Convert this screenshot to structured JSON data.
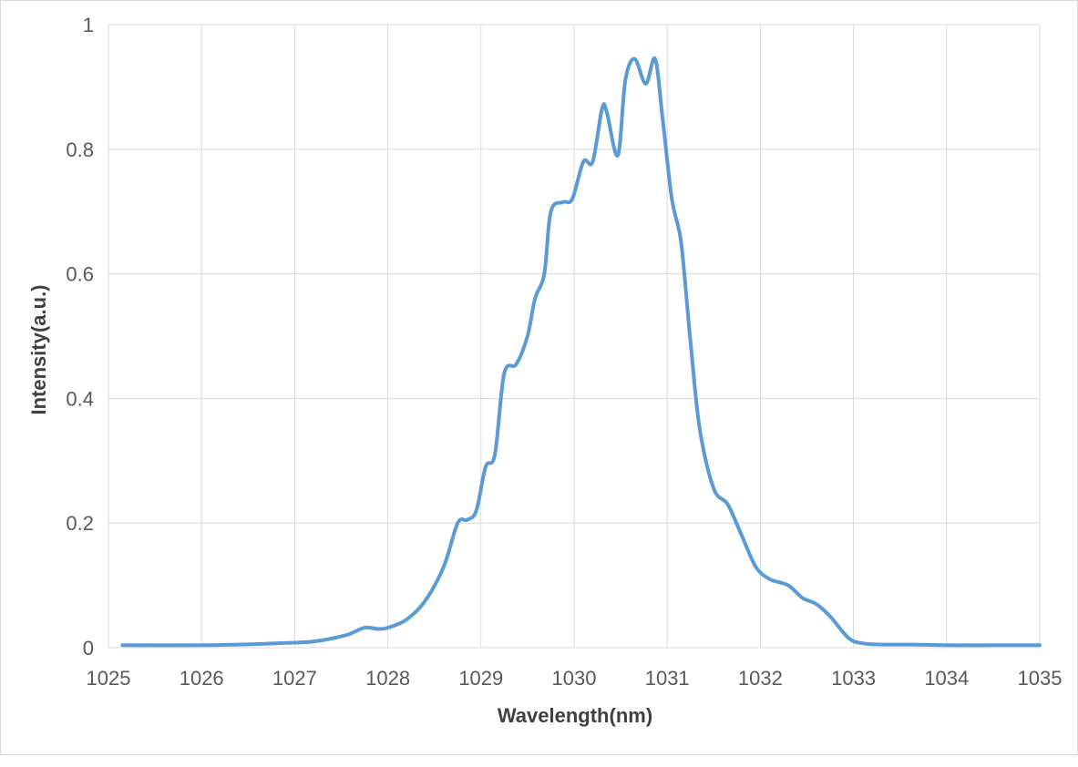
{
  "chart_data": {
    "type": "line",
    "xlabel": "Wavelength(nm)",
    "ylabel": "Intensity(a.u.)",
    "xlim": [
      1025,
      1035
    ],
    "ylim": [
      0,
      1
    ],
    "x_ticks": [
      "1025",
      "1026",
      "1027",
      "1028",
      "1029",
      "1030",
      "1031",
      "1032",
      "1033",
      "1034",
      "1035"
    ],
    "y_ticks": [
      "0",
      "0.2",
      "0.4",
      "0.6",
      "0.8",
      "1"
    ],
    "grid": true,
    "legend": "none",
    "colors": {
      "line": "#5b9bd5",
      "grid": "#d9d9d9"
    },
    "series": [
      {
        "x": [
          1025.15,
          1026.0,
          1026.4,
          1026.8,
          1027.2,
          1027.55,
          1027.75,
          1027.9,
          1028.0,
          1028.2,
          1028.4,
          1028.6,
          1028.75,
          1028.85,
          1028.95,
          1029.05,
          1029.15,
          1029.25,
          1029.38,
          1029.5,
          1029.58,
          1029.68,
          1029.75,
          1029.88,
          1029.98,
          1030.1,
          1030.2,
          1030.3,
          1030.35,
          1030.47,
          1030.55,
          1030.65,
          1030.77,
          1030.87,
          1030.95,
          1031.05,
          1031.15,
          1031.25,
          1031.35,
          1031.5,
          1031.65,
          1031.8,
          1031.95,
          1032.1,
          1032.3,
          1032.45,
          1032.6,
          1032.75,
          1032.95,
          1033.1,
          1033.3,
          1033.6,
          1034.0,
          1034.5,
          1035.0
        ],
        "y": [
          0.004,
          0.004,
          0.005,
          0.007,
          0.01,
          0.02,
          0.032,
          0.03,
          0.032,
          0.045,
          0.075,
          0.13,
          0.2,
          0.205,
          0.22,
          0.29,
          0.31,
          0.44,
          0.455,
          0.5,
          0.56,
          0.6,
          0.7,
          0.715,
          0.72,
          0.78,
          0.78,
          0.865,
          0.86,
          0.79,
          0.91,
          0.945,
          0.905,
          0.945,
          0.85,
          0.72,
          0.65,
          0.49,
          0.35,
          0.255,
          0.23,
          0.18,
          0.13,
          0.11,
          0.1,
          0.08,
          0.07,
          0.05,
          0.015,
          0.007,
          0.005,
          0.005,
          0.004,
          0.004,
          0.004
        ]
      }
    ]
  }
}
